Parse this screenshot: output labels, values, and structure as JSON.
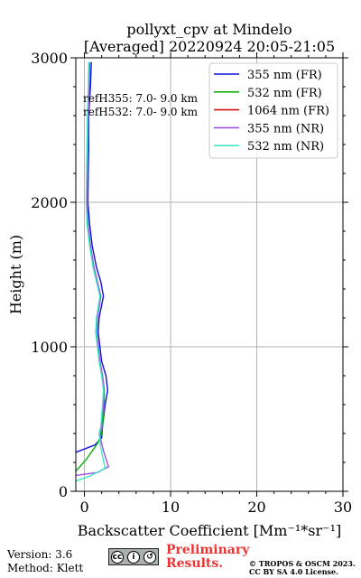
{
  "chart_data": {
    "type": "line",
    "title": "pollyxt_cpv at Mindelo",
    "subtitle": "[Averaged] 20220924 20:05-21:05",
    "xlabel": "Backscatter Coefficient [Mm⁻¹*sr⁻¹]",
    "ylabel": "Height (m)",
    "xlim": [
      -1,
      30
    ],
    "ylim": [
      0,
      3000
    ],
    "xticks": [
      0,
      10,
      20,
      30
    ],
    "yticks": [
      0,
      1000,
      2000,
      3000
    ],
    "grid": true,
    "legend_position": "top-right",
    "annotations": [
      "refH355:  7.0- 9.0 km",
      "refH532:  7.0- 9.0 km"
    ],
    "series": [
      {
        "name": "355 nm (FR)",
        "color": "#1010e0",
        "points": [
          [
            -1.0,
            270
          ],
          [
            1.2,
            320
          ],
          [
            2.0,
            370
          ],
          [
            2.1,
            450
          ],
          [
            2.4,
            600
          ],
          [
            2.7,
            700
          ],
          [
            2.5,
            800
          ],
          [
            2.0,
            900
          ],
          [
            1.8,
            1000
          ],
          [
            1.6,
            1100
          ],
          [
            1.7,
            1200
          ],
          [
            2.2,
            1350
          ],
          [
            1.9,
            1450
          ],
          [
            1.4,
            1550
          ],
          [
            0.9,
            1700
          ],
          [
            0.6,
            1850
          ],
          [
            0.4,
            2000
          ],
          [
            0.45,
            2200
          ],
          [
            0.5,
            2400
          ],
          [
            0.5,
            2600
          ],
          [
            0.7,
            2800
          ],
          [
            0.8,
            2970
          ]
        ]
      },
      {
        "name": "532 nm (FR)",
        "color": "#10b010",
        "points": [
          [
            -1.0,
            140
          ],
          [
            0.2,
            220
          ],
          [
            1.5,
            330
          ],
          [
            1.9,
            380
          ],
          [
            2.1,
            450
          ],
          [
            2.3,
            600
          ],
          [
            2.3,
            700
          ],
          [
            2.1,
            800
          ],
          [
            1.8,
            900
          ],
          [
            1.6,
            1000
          ],
          [
            1.4,
            1100
          ],
          [
            1.5,
            1200
          ],
          [
            1.9,
            1350
          ],
          [
            1.5,
            1450
          ],
          [
            1.1,
            1550
          ],
          [
            0.7,
            1700
          ],
          [
            0.4,
            1850
          ],
          [
            0.3,
            2000
          ],
          [
            0.35,
            2200
          ],
          [
            0.4,
            2400
          ],
          [
            0.45,
            2600
          ],
          [
            0.55,
            2800
          ],
          [
            0.6,
            2970
          ]
        ]
      },
      {
        "name": "1064 nm (FR)",
        "color": "#dd1111",
        "points": []
      },
      {
        "name": "355 nm (NR)",
        "color": "#a050e0",
        "points": [
          [
            -1.0,
            110
          ],
          [
            1.5,
            130
          ],
          [
            2.8,
            170
          ],
          [
            2.2,
            280
          ],
          [
            1.8,
            380
          ],
          [
            2.0,
            450
          ],
          [
            2.2,
            600
          ],
          [
            2.3,
            700
          ],
          [
            2.1,
            800
          ],
          [
            1.8,
            900
          ],
          [
            1.6,
            1000
          ],
          [
            1.4,
            1100
          ],
          [
            1.5,
            1200
          ],
          [
            1.9,
            1350
          ],
          [
            1.5,
            1450
          ],
          [
            1.1,
            1550
          ],
          [
            0.7,
            1700
          ],
          [
            0.4,
            1850
          ],
          [
            0.3,
            2000
          ],
          [
            0.35,
            2200
          ],
          [
            0.4,
            2400
          ],
          [
            0.45,
            2600
          ],
          [
            0.55,
            2800
          ],
          [
            0.6,
            2970
          ]
        ]
      },
      {
        "name": "532 nm (NR)",
        "color": "#40e8c8",
        "points": [
          [
            -1.0,
            70
          ],
          [
            0.8,
            110
          ],
          [
            2.4,
            160
          ],
          [
            1.9,
            300
          ],
          [
            1.7,
            400
          ],
          [
            1.9,
            450
          ],
          [
            2.1,
            600
          ],
          [
            2.2,
            700
          ],
          [
            2.0,
            800
          ],
          [
            1.7,
            900
          ],
          [
            1.5,
            1000
          ],
          [
            1.3,
            1100
          ],
          [
            1.4,
            1200
          ],
          [
            1.8,
            1350
          ],
          [
            1.4,
            1450
          ],
          [
            1.0,
            1550
          ],
          [
            0.6,
            1700
          ],
          [
            0.3,
            1850
          ],
          [
            0.2,
            2000
          ],
          [
            0.25,
            2200
          ],
          [
            0.3,
            2400
          ],
          [
            0.35,
            2600
          ],
          [
            0.45,
            2800
          ],
          [
            0.5,
            2970
          ]
        ]
      }
    ]
  },
  "footer": {
    "version": "Version: 3.6",
    "method": "Method: Klett",
    "preliminary_1": "Preliminary",
    "preliminary_2": "Results.",
    "copyright_1": "© TROPOS & OSCM 2023.",
    "copyright_2": "CC BY SA 4.0 License."
  },
  "license_badge": {
    "symbols": [
      "cc",
      "i",
      "↺"
    ],
    "color": "#aab0ad"
  }
}
